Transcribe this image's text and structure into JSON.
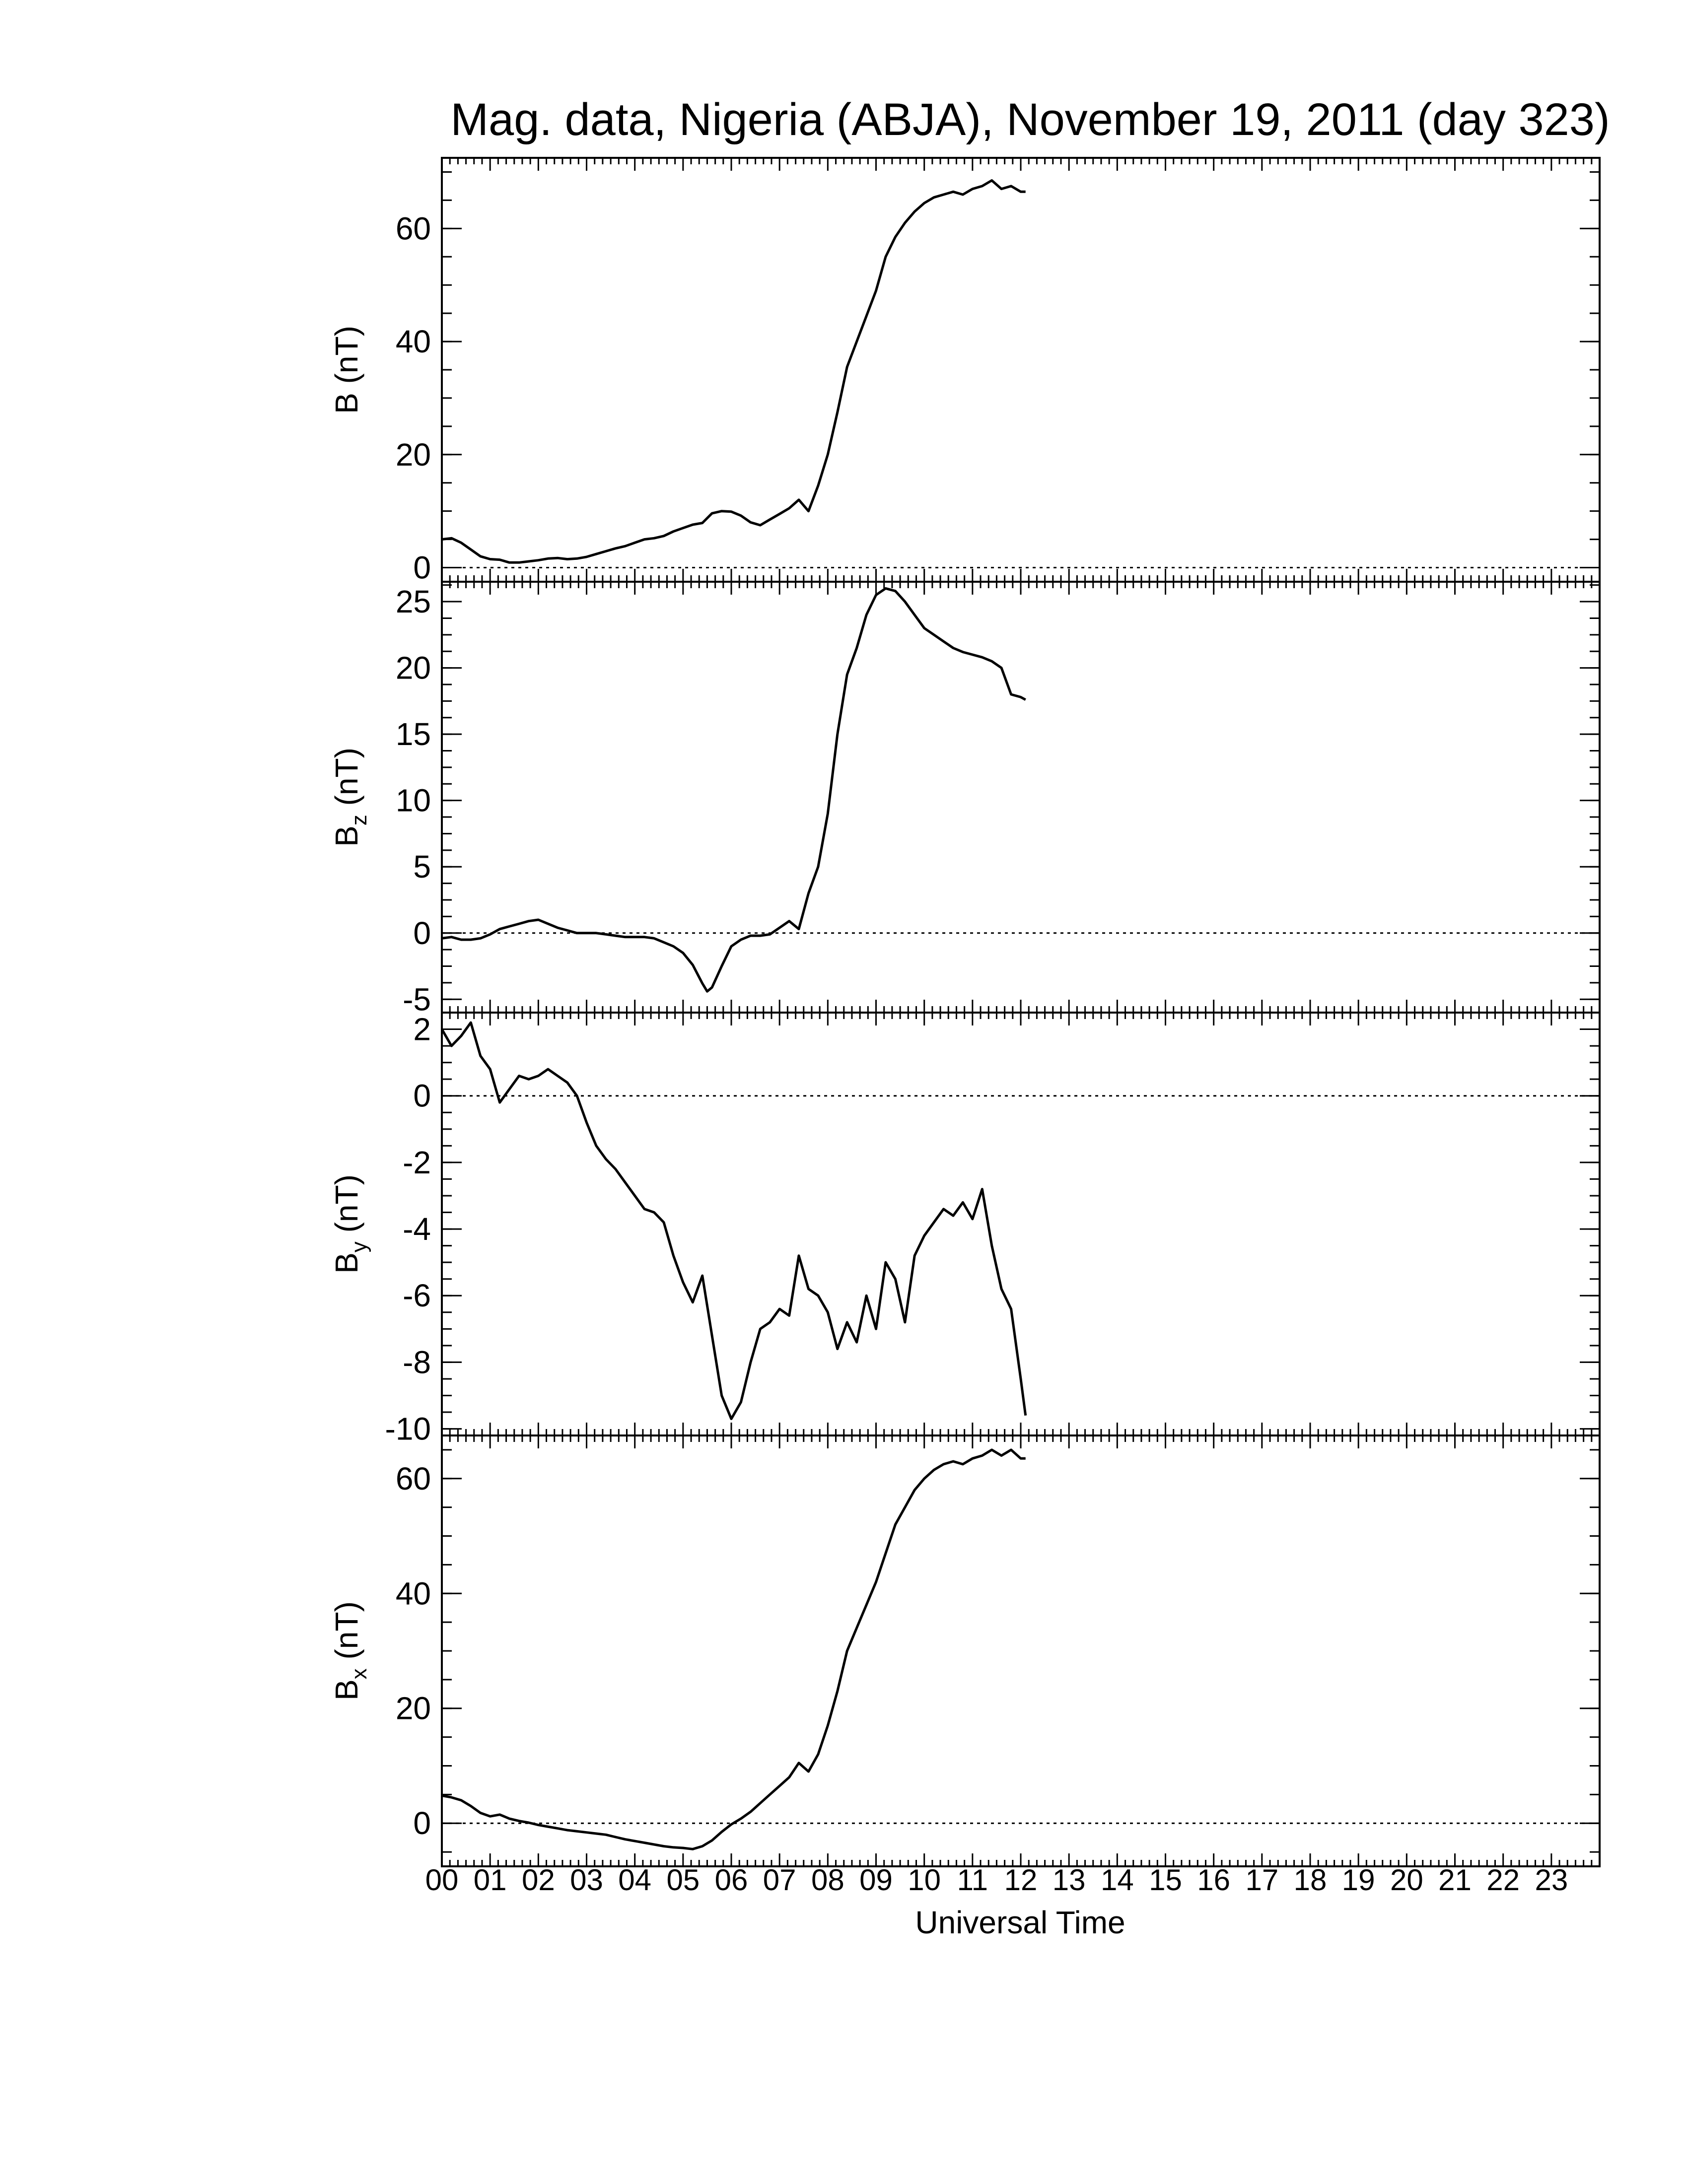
{
  "title": "Mag. data, Nigeria (ABJA), November 19, 2011 (day 323)",
  "xlabel": "Universal Time",
  "line_color": "#000000",
  "x_ticks": [
    "00",
    "01",
    "02",
    "03",
    "04",
    "05",
    "06",
    "07",
    "08",
    "09",
    "10",
    "11",
    "12",
    "13",
    "14",
    "15",
    "16",
    "17",
    "18",
    "19",
    "20",
    "21",
    "22",
    "23"
  ],
  "chart_data": [
    {
      "type": "line",
      "panel": "B",
      "ylabel": "B (nT)",
      "ylim": [
        -2.5,
        72.5
      ],
      "yticks": [
        0,
        20,
        40,
        60
      ],
      "ytick_labels": [
        "0",
        "20",
        "40",
        "60"
      ],
      "zero_line": true,
      "x_unit": "hours UT",
      "x": [
        0.0,
        0.2,
        0.4,
        0.6,
        0.8,
        1.0,
        1.2,
        1.4,
        1.6,
        1.8,
        2.0,
        2.2,
        2.4,
        2.6,
        2.8,
        3.0,
        3.2,
        3.4,
        3.6,
        3.8,
        4.0,
        4.2,
        4.4,
        4.6,
        4.8,
        5.0,
        5.2,
        5.4,
        5.6,
        5.8,
        6.0,
        6.2,
        6.4,
        6.6,
        6.8,
        7.0,
        7.2,
        7.4,
        7.6,
        7.8,
        8.0,
        8.2,
        8.4,
        8.6,
        8.8,
        9.0,
        9.2,
        9.4,
        9.6,
        9.8,
        10.0,
        10.2,
        10.4,
        10.6,
        10.8,
        11.0,
        11.2,
        11.4,
        11.6,
        11.8,
        12.0,
        12.1
      ],
      "y": [
        5.0,
        5.2,
        4.4,
        3.2,
        2.0,
        1.5,
        1.4,
        0.9,
        0.9,
        1.1,
        1.3,
        1.6,
        1.7,
        1.5,
        1.6,
        1.9,
        2.4,
        2.9,
        3.4,
        3.8,
        4.4,
        5.0,
        5.2,
        5.6,
        6.4,
        7.0,
        7.6,
        7.9,
        9.6,
        10.0,
        9.9,
        9.2,
        8.0,
        7.5,
        8.5,
        9.5,
        10.5,
        12.0,
        10.0,
        14.5,
        20.0,
        27.5,
        35.5,
        40.0,
        44.5,
        49.0,
        55.0,
        58.5,
        61.0,
        63.0,
        64.5,
        65.5,
        66.0,
        66.5,
        66.0,
        67.0,
        67.5,
        68.5,
        67.0,
        67.5,
        66.5,
        66.5
      ]
    },
    {
      "type": "line",
      "panel": "Bz",
      "ylabel": "B_z (nT)",
      "ylim": [
        -6,
        26.5
      ],
      "yticks": [
        -5,
        0,
        5,
        10,
        15,
        20,
        25
      ],
      "ytick_labels": [
        "-5",
        "0",
        "5",
        "10",
        "15",
        "20",
        "25"
      ],
      "zero_line": true,
      "x_unit": "hours UT",
      "x": [
        0.0,
        0.2,
        0.4,
        0.6,
        0.8,
        1.0,
        1.2,
        1.4,
        1.6,
        1.8,
        2.0,
        2.2,
        2.4,
        2.6,
        2.8,
        3.0,
        3.2,
        3.4,
        3.6,
        3.8,
        4.0,
        4.2,
        4.4,
        4.6,
        4.8,
        5.0,
        5.2,
        5.4,
        5.5,
        5.6,
        5.8,
        6.0,
        6.2,
        6.4,
        6.6,
        6.8,
        7.0,
        7.2,
        7.4,
        7.6,
        7.8,
        8.0,
        8.2,
        8.4,
        8.6,
        8.8,
        9.0,
        9.2,
        9.4,
        9.6,
        9.8,
        10.0,
        10.2,
        10.4,
        10.6,
        10.8,
        11.0,
        11.2,
        11.4,
        11.6,
        11.8,
        12.0,
        12.1
      ],
      "y": [
        -0.4,
        -0.3,
        -0.5,
        -0.5,
        -0.4,
        -0.1,
        0.3,
        0.5,
        0.7,
        0.9,
        1.0,
        0.7,
        0.4,
        0.2,
        0.0,
        0.0,
        0.0,
        -0.1,
        -0.2,
        -0.3,
        -0.3,
        -0.3,
        -0.4,
        -0.7,
        -1.0,
        -1.5,
        -2.4,
        -3.8,
        -4.4,
        -4.1,
        -2.5,
        -1.0,
        -0.5,
        -0.2,
        -0.2,
        -0.1,
        0.4,
        0.9,
        0.3,
        3.0,
        5.0,
        9.0,
        15.0,
        19.5,
        21.5,
        24.0,
        25.5,
        26.0,
        25.8,
        25.0,
        24.0,
        23.0,
        22.5,
        22.0,
        21.5,
        21.2,
        21.0,
        20.8,
        20.5,
        20.0,
        18.0,
        17.8,
        17.6
      ]
    },
    {
      "type": "line",
      "panel": "By",
      "ylabel": "B_y (nT)",
      "ylim": [
        -10.2,
        2.5
      ],
      "yticks": [
        -10,
        -8,
        -6,
        -4,
        -2,
        0,
        2
      ],
      "ytick_labels": [
        "-10",
        "-8",
        "-6",
        "-4",
        "-2",
        "0",
        "2"
      ],
      "zero_line": true,
      "x_unit": "hours UT",
      "x": [
        0.0,
        0.2,
        0.4,
        0.6,
        0.8,
        1.0,
        1.2,
        1.4,
        1.6,
        1.8,
        2.0,
        2.2,
        2.4,
        2.6,
        2.8,
        3.0,
        3.2,
        3.4,
        3.6,
        3.8,
        4.0,
        4.2,
        4.4,
        4.6,
        4.8,
        5.0,
        5.2,
        5.4,
        5.6,
        5.8,
        6.0,
        6.2,
        6.4,
        6.6,
        6.8,
        7.0,
        7.2,
        7.4,
        7.6,
        7.8,
        8.0,
        8.2,
        8.4,
        8.6,
        8.8,
        9.0,
        9.2,
        9.4,
        9.6,
        9.8,
        10.0,
        10.2,
        10.4,
        10.6,
        10.8,
        11.0,
        11.2,
        11.4,
        11.6,
        11.8,
        12.0,
        12.1
      ],
      "y": [
        2.0,
        1.5,
        1.8,
        2.2,
        1.2,
        0.8,
        -0.2,
        0.2,
        0.6,
        0.5,
        0.6,
        0.8,
        0.6,
        0.4,
        0.0,
        -0.8,
        -1.5,
        -1.9,
        -2.2,
        -2.6,
        -3.0,
        -3.4,
        -3.5,
        -3.8,
        -4.8,
        -5.6,
        -6.2,
        -5.4,
        -7.2,
        -9.0,
        -9.7,
        -9.2,
        -8.0,
        -7.0,
        -6.8,
        -6.4,
        -6.6,
        -4.8,
        -5.8,
        -6.0,
        -6.5,
        -7.6,
        -6.8,
        -7.4,
        -6.0,
        -7.0,
        -5.0,
        -5.5,
        -6.8,
        -4.8,
        -4.2,
        -3.8,
        -3.4,
        -3.6,
        -3.2,
        -3.7,
        -2.8,
        -4.5,
        -5.8,
        -6.4,
        -8.5,
        -9.6
      ]
    },
    {
      "type": "line",
      "panel": "Bx",
      "ylabel": "B_x (nT)",
      "ylim": [
        -7.5,
        67.5
      ],
      "yticks": [
        0,
        20,
        40,
        60
      ],
      "ytick_labels": [
        "0",
        "20",
        "40",
        "60"
      ],
      "zero_line": true,
      "x_unit": "hours UT",
      "x": [
        0.0,
        0.2,
        0.4,
        0.6,
        0.8,
        1.0,
        1.2,
        1.4,
        1.6,
        1.8,
        2.0,
        2.2,
        2.4,
        2.6,
        2.8,
        3.0,
        3.2,
        3.4,
        3.6,
        3.8,
        4.0,
        4.2,
        4.4,
        4.6,
        4.8,
        5.0,
        5.2,
        5.4,
        5.6,
        5.8,
        6.0,
        6.2,
        6.4,
        6.6,
        6.8,
        7.0,
        7.2,
        7.4,
        7.6,
        7.8,
        8.0,
        8.2,
        8.4,
        8.6,
        8.8,
        9.0,
        9.2,
        9.4,
        9.6,
        9.8,
        10.0,
        10.2,
        10.4,
        10.6,
        10.8,
        11.0,
        11.2,
        11.4,
        11.6,
        11.8,
        12.0,
        12.1
      ],
      "y": [
        4.8,
        4.5,
        4.0,
        3.0,
        1.8,
        1.2,
        1.5,
        0.8,
        0.4,
        0.1,
        -0.3,
        -0.6,
        -0.9,
        -1.2,
        -1.4,
        -1.6,
        -1.8,
        -2.0,
        -2.4,
        -2.8,
        -3.1,
        -3.4,
        -3.7,
        -4.0,
        -4.2,
        -4.3,
        -4.5,
        -4.0,
        -3.0,
        -1.5,
        -0.2,
        0.8,
        2.0,
        3.5,
        5.0,
        6.5,
        8.0,
        10.5,
        9.0,
        12.0,
        17.0,
        23.0,
        30.0,
        34.0,
        38.0,
        42.0,
        47.0,
        52.0,
        55.0,
        58.0,
        60.0,
        61.5,
        62.5,
        63.0,
        62.5,
        63.5,
        64.0,
        65.0,
        64.0,
        65.0,
        63.5,
        63.5
      ]
    }
  ]
}
